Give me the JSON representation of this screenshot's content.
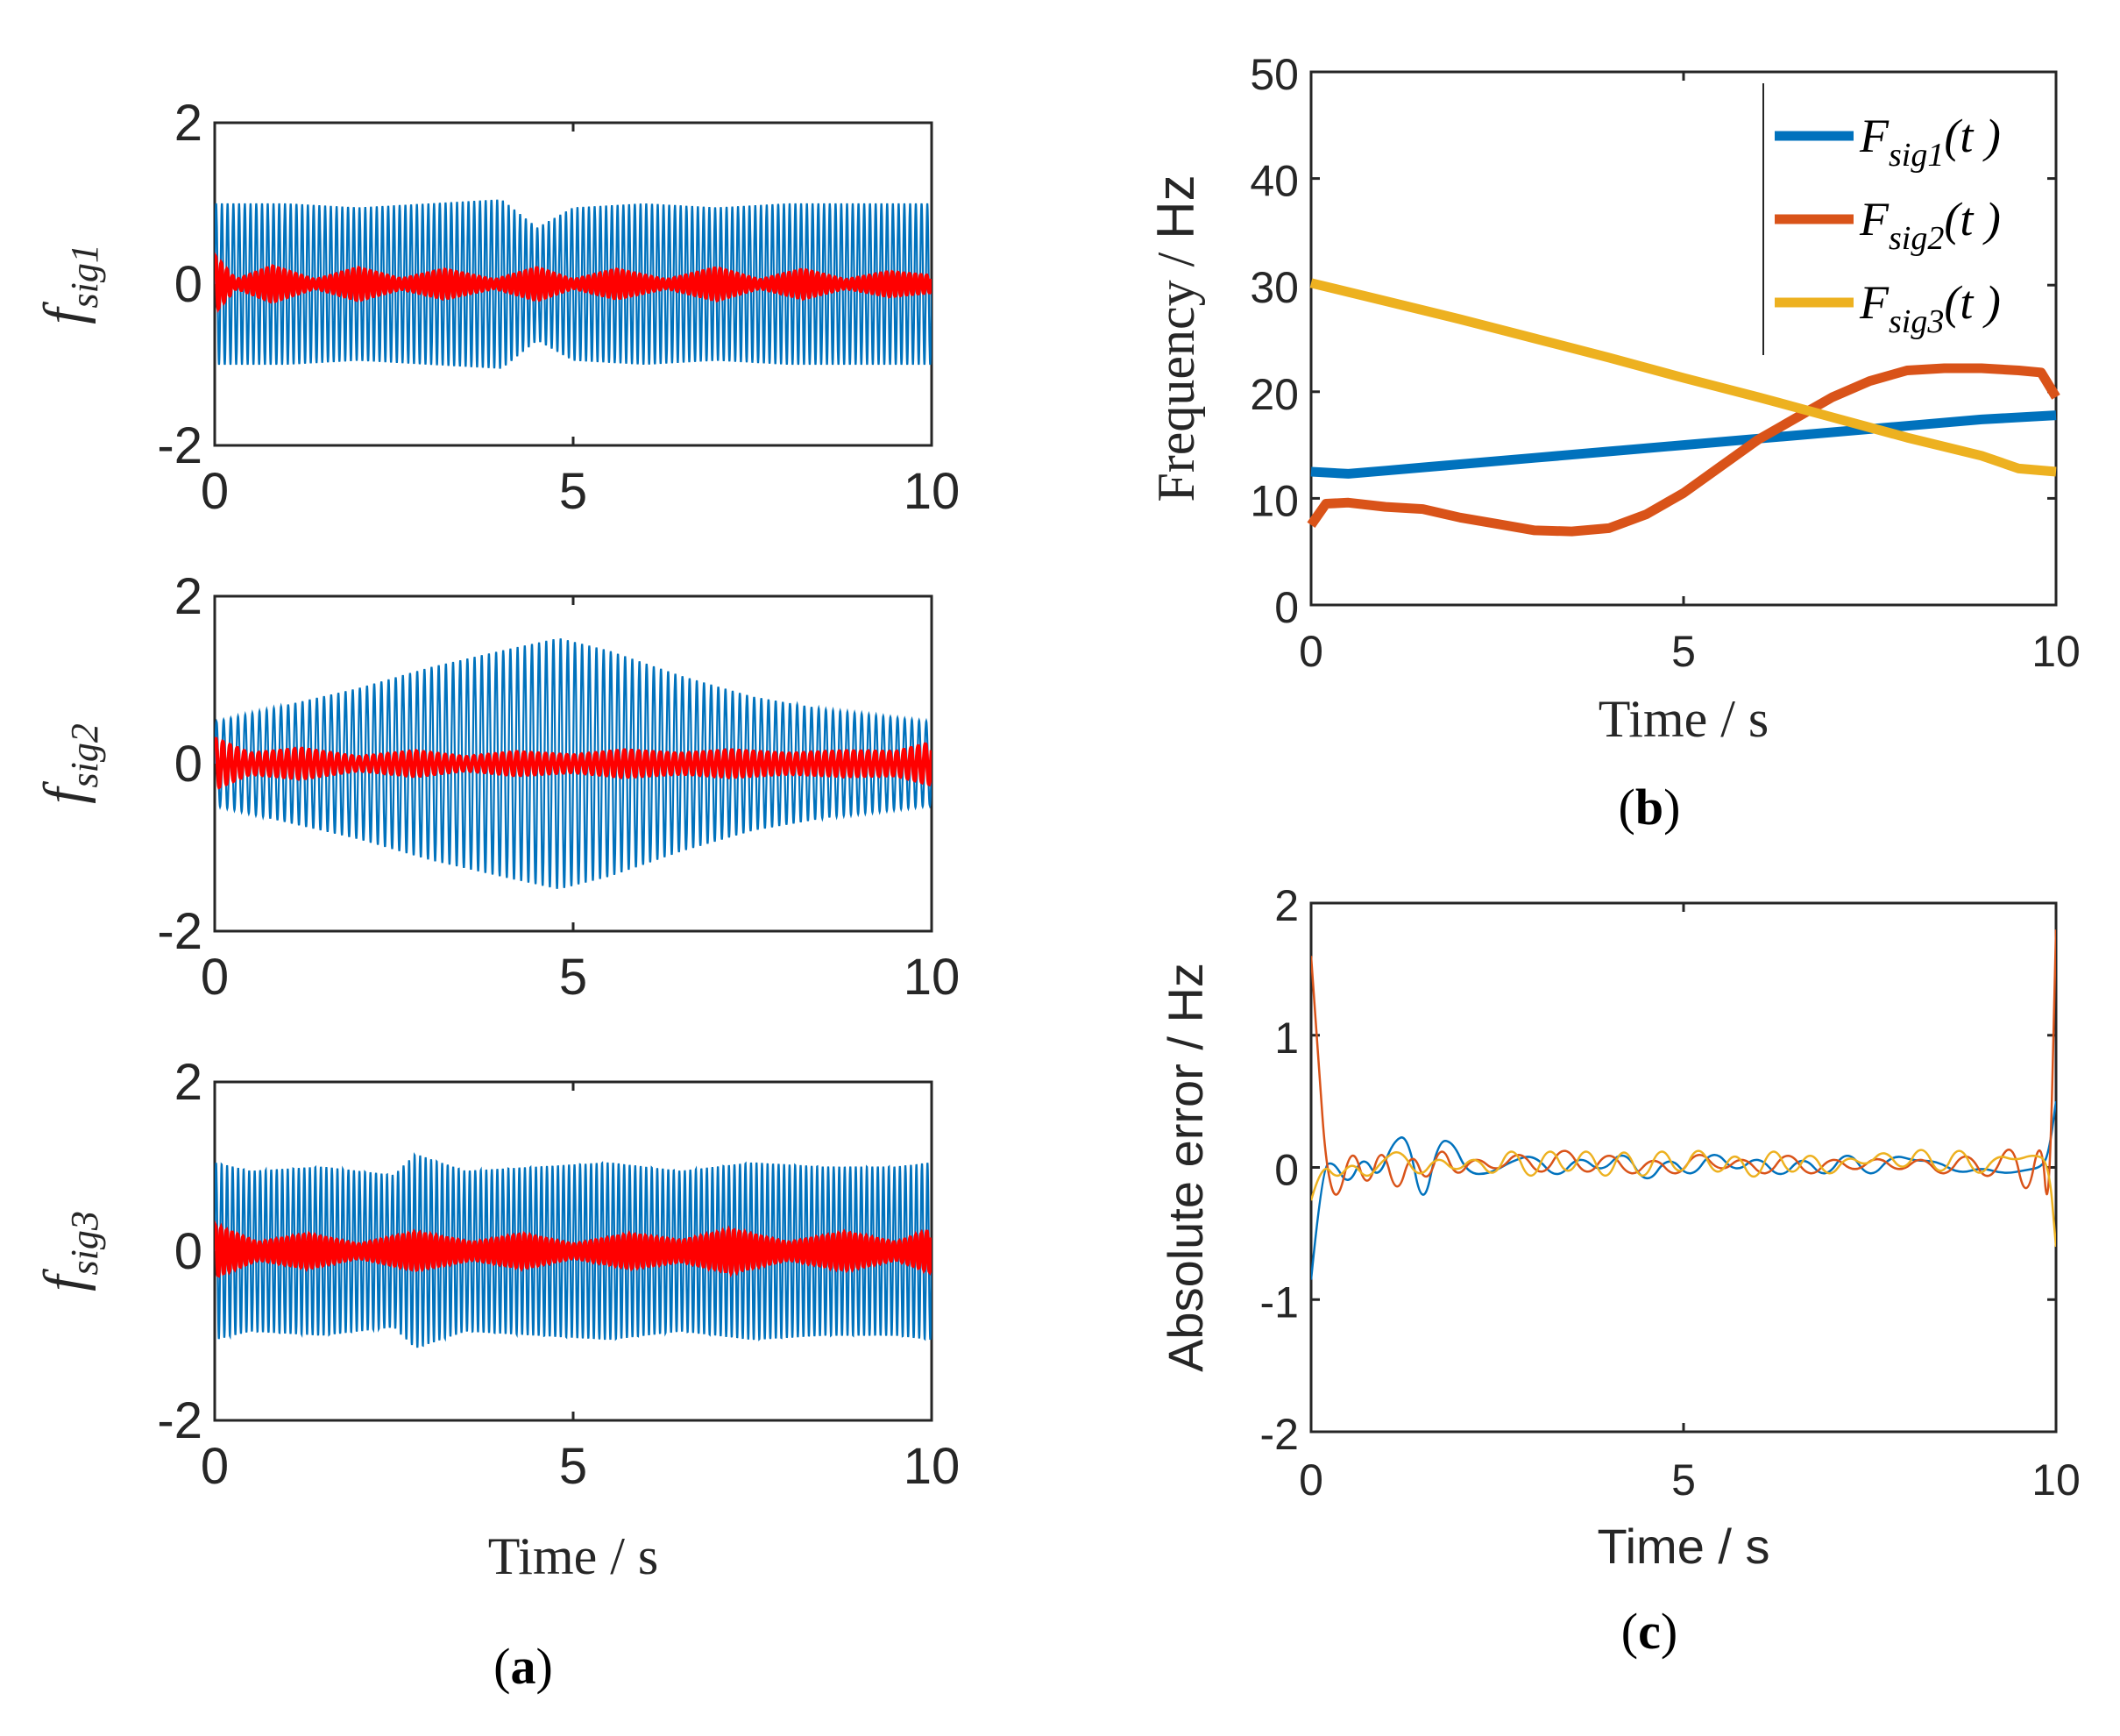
{
  "chart_data": [
    {
      "id": "a1",
      "type": "line",
      "ylabel": "f_sig1",
      "ylabel_main": "f",
      "ylabel_sub": "sig1",
      "xlim": [
        0,
        10
      ],
      "ylim": [
        -2,
        2
      ],
      "xticks": [
        "0",
        "5",
        "10"
      ],
      "yticks": [
        "-2",
        "0",
        "2"
      ],
      "series": [
        {
          "color": "#0072BD",
          "freq_hz": 12.5,
          "amplitude": 1.0,
          "envelope_t": [
            0,
            1,
            2,
            3,
            4,
            4.5,
            5,
            6,
            7,
            8,
            9,
            10
          ],
          "envelope_v": [
            1.0,
            1.0,
            0.95,
            1.0,
            1.05,
            0.7,
            0.95,
            1.0,
            0.95,
            1.0,
            1.0,
            1.0
          ]
        },
        {
          "color": "#FF0000",
          "freq_hz": 12.5,
          "amplitude": 0.12,
          "envelope_t": [
            0,
            0.3,
            0.8,
            1.4,
            2,
            2.6,
            3.2,
            3.9,
            4.5,
            5,
            5.6,
            6.3,
            7,
            7.6,
            8.2,
            8.8,
            9.4,
            10
          ],
          "envelope_v": [
            0.35,
            0.05,
            0.22,
            0.05,
            0.2,
            0.06,
            0.18,
            0.05,
            0.2,
            0.05,
            0.18,
            0.05,
            0.2,
            0.05,
            0.18,
            0.05,
            0.15,
            0.1
          ]
        }
      ]
    },
    {
      "id": "a2",
      "type": "line",
      "ylabel": "f_sig2",
      "ylabel_main": "f",
      "ylabel_sub": "sig2",
      "xlim": [
        0,
        10
      ],
      "ylim": [
        -2,
        2
      ],
      "xticks": [
        "0",
        "5",
        "10"
      ],
      "yticks": [
        "-2",
        "0",
        "2"
      ],
      "series": [
        {
          "color": "#0072BD",
          "freq_hz": 10,
          "amplitude": 1.0,
          "envelope_t": [
            0,
            1,
            2,
            3,
            4,
            4.8,
            5.5,
            6.5,
            7.5,
            8.5,
            9.5,
            10
          ],
          "envelope_v": [
            0.5,
            0.7,
            0.9,
            1.15,
            1.35,
            1.5,
            1.35,
            1.05,
            0.8,
            0.65,
            0.55,
            0.5
          ]
        },
        {
          "color": "#FF0000",
          "freq_hz": 10,
          "amplitude": 0.12,
          "envelope_t": [
            0,
            0.5,
            1.2,
            2,
            2.8,
            3.5,
            4.2,
            5,
            5.7,
            6.5,
            7.2,
            8,
            8.8,
            9.5,
            10
          ],
          "envelope_v": [
            0.3,
            0.12,
            0.18,
            0.08,
            0.15,
            0.08,
            0.14,
            0.1,
            0.16,
            0.12,
            0.16,
            0.12,
            0.15,
            0.14,
            0.25
          ]
        }
      ]
    },
    {
      "id": "a3",
      "type": "line",
      "ylabel": "f_sig3",
      "ylabel_main": "f",
      "ylabel_sub": "sig3",
      "xlim": [
        0,
        10
      ],
      "ylim": [
        -2,
        2
      ],
      "xticks": [
        "0",
        "5",
        "10"
      ],
      "yticks": [
        "-2",
        "0",
        "2"
      ],
      "xlabel": "Time / s",
      "series": [
        {
          "color": "#0072BD",
          "freq_hz": 13,
          "amplitude": 1.0,
          "envelope_t": [
            0,
            0.5,
            1.5,
            2.5,
            2.8,
            3.5,
            4.5,
            5.5,
            6.5,
            7.5,
            8.5,
            9.5,
            10
          ],
          "envelope_v": [
            1.05,
            0.95,
            1.0,
            0.9,
            1.15,
            0.95,
            1.0,
            1.05,
            0.95,
            1.05,
            1.0,
            1.0,
            1.05
          ]
        },
        {
          "color": "#FF0000",
          "freq_hz": 13,
          "amplitude": 0.12,
          "envelope_t": [
            0,
            0.6,
            1.3,
            2,
            2.8,
            3.6,
            4.3,
            5,
            5.8,
            6.5,
            7.2,
            8,
            8.8,
            9.5,
            10
          ],
          "envelope_v": [
            0.3,
            0.1,
            0.2,
            0.08,
            0.22,
            0.1,
            0.2,
            0.08,
            0.2,
            0.12,
            0.25,
            0.1,
            0.22,
            0.1,
            0.25
          ]
        }
      ]
    },
    {
      "id": "b",
      "type": "line",
      "ylabel": "Frequency / Hz",
      "xlabel": "Time / s",
      "xlim": [
        0,
        10
      ],
      "ylim": [
        0,
        50
      ],
      "xticks": [
        "0",
        "5",
        "10"
      ],
      "yticks": [
        "0",
        "10",
        "20",
        "30",
        "40",
        "50"
      ],
      "legend_position": "top-right",
      "series": [
        {
          "name": "Fsig1(t)",
          "legend_main": "F",
          "legend_sub": "sig1",
          "legend_arg": "(t )",
          "color": "#0072BD",
          "x": [
            0,
            0.5,
            1,
            1.5,
            2,
            3,
            4,
            5,
            6,
            7,
            8,
            9,
            10
          ],
          "y": [
            12.5,
            12.3,
            12.6,
            12.9,
            13.2,
            13.8,
            14.4,
            15.0,
            15.6,
            16.2,
            16.8,
            17.4,
            17.8
          ]
        },
        {
          "name": "Fsig2(t)",
          "legend_main": "F",
          "legend_sub": "sig2",
          "legend_arg": "(t )",
          "color": "#D95319",
          "x": [
            0,
            0.2,
            0.5,
            1,
            1.5,
            2,
            2.5,
            3,
            3.5,
            4,
            4.5,
            5,
            5.5,
            6,
            6.5,
            7,
            7.5,
            8,
            8.5,
            9,
            9.5,
            9.8,
            10
          ],
          "y": [
            7.5,
            9.5,
            9.6,
            9.2,
            9.0,
            8.2,
            7.6,
            7.0,
            6.9,
            7.2,
            8.5,
            10.5,
            13.0,
            15.5,
            17.5,
            19.5,
            21.0,
            22.0,
            22.2,
            22.2,
            22.0,
            21.8,
            19.5
          ]
        },
        {
          "name": "Fsig3(t)",
          "legend_main": "F",
          "legend_sub": "sig3",
          "legend_arg": "(t )",
          "color": "#EDB120",
          "x": [
            0,
            1,
            2,
            3,
            4,
            5,
            6,
            7,
            8,
            9,
            9.5,
            10
          ],
          "y": [
            30.2,
            28.5,
            26.8,
            25.0,
            23.2,
            21.3,
            19.5,
            17.6,
            15.7,
            14.0,
            12.8,
            12.5
          ]
        }
      ]
    },
    {
      "id": "c",
      "type": "line",
      "ylabel": "Absolute error / Hz",
      "xlabel": "Time / s",
      "xlim": [
        0,
        10
      ],
      "ylim": [
        -2,
        2
      ],
      "xticks": [
        "0",
        "5",
        "10"
      ],
      "yticks": [
        "-2",
        "-1",
        "0",
        "1",
        "2"
      ],
      "series": [
        {
          "color": "#0072BD",
          "x": [
            0,
            0.15,
            0.3,
            0.5,
            0.7,
            0.9,
            1.1,
            1.3,
            1.5,
            1.7,
            1.9,
            2.1,
            2.4,
            2.7,
            3.0,
            3.3,
            3.6,
            3.9,
            4.2,
            4.5,
            4.8,
            5.1,
            5.4,
            5.7,
            6.0,
            6.3,
            6.6,
            6.9,
            7.2,
            7.5,
            7.8,
            8.1,
            8.4,
            8.7,
            9.0,
            9.3,
            9.6,
            9.8,
            9.9,
            10
          ],
          "y": [
            -0.85,
            0.0,
            0.05,
            -0.15,
            0.1,
            -0.1,
            0.2,
            0.25,
            -0.35,
            0.2,
            0.2,
            -0.05,
            -0.05,
            0.05,
            0.1,
            -0.1,
            0.1,
            -0.05,
            0.15,
            -0.15,
            0.1,
            -0.1,
            0.15,
            -0.05,
            0.1,
            -0.1,
            0.1,
            -0.1,
            0.15,
            -0.1,
            0.1,
            0.05,
            0.05,
            -0.05,
            0.0,
            -0.05,
            -0.02,
            0.0,
            0.1,
            0.5
          ]
        },
        {
          "color": "#D95319",
          "x": [
            0,
            0.1,
            0.2,
            0.35,
            0.55,
            0.75,
            0.95,
            1.15,
            1.35,
            1.55,
            1.75,
            1.95,
            2.2,
            2.5,
            2.8,
            3.1,
            3.4,
            3.7,
            4.0,
            4.3,
            4.6,
            4.9,
            5.2,
            5.5,
            5.8,
            6.1,
            6.4,
            6.7,
            7.0,
            7.3,
            7.6,
            7.9,
            8.2,
            8.5,
            8.8,
            9.1,
            9.4,
            9.6,
            9.8,
            9.9,
            10
          ],
          "y": [
            1.6,
            0.8,
            0.0,
            -0.3,
            0.2,
            -0.2,
            0.2,
            -0.25,
            0.15,
            -0.15,
            0.2,
            -0.1,
            0.1,
            -0.05,
            0.15,
            -0.1,
            0.2,
            -0.1,
            0.15,
            -0.1,
            0.1,
            -0.1,
            0.15,
            -0.05,
            0.1,
            -0.1,
            0.15,
            -0.1,
            0.1,
            -0.05,
            0.1,
            -0.05,
            0.1,
            -0.1,
            0.15,
            -0.15,
            0.25,
            -0.3,
            0.3,
            -0.5,
            1.8
          ]
        },
        {
          "color": "#EDB120",
          "x": [
            0,
            0.15,
            0.35,
            0.55,
            0.75,
            0.95,
            1.2,
            1.45,
            1.7,
            1.95,
            2.2,
            2.45,
            2.7,
            2.95,
            3.2,
            3.45,
            3.7,
            3.95,
            4.2,
            4.45,
            4.7,
            4.95,
            5.2,
            5.45,
            5.7,
            5.95,
            6.2,
            6.45,
            6.7,
            6.95,
            7.2,
            7.45,
            7.7,
            7.95,
            8.2,
            8.45,
            8.7,
            8.95,
            9.2,
            9.45,
            9.7,
            9.9,
            10
          ],
          "y": [
            -0.25,
            0.05,
            -0.1,
            0.05,
            -0.1,
            0.05,
            0.15,
            -0.1,
            0.1,
            -0.05,
            0.1,
            -0.1,
            0.2,
            -0.15,
            0.2,
            -0.1,
            0.2,
            -0.15,
            0.2,
            -0.15,
            0.2,
            -0.1,
            0.2,
            -0.1,
            0.15,
            -0.15,
            0.2,
            -0.1,
            0.15,
            -0.1,
            0.1,
            0.0,
            0.15,
            -0.05,
            0.2,
            -0.1,
            0.2,
            -0.1,
            0.1,
            0.05,
            0.1,
            0.05,
            -0.6
          ]
        }
      ]
    }
  ],
  "captions": {
    "a": "a",
    "b": "b",
    "c": "c"
  }
}
